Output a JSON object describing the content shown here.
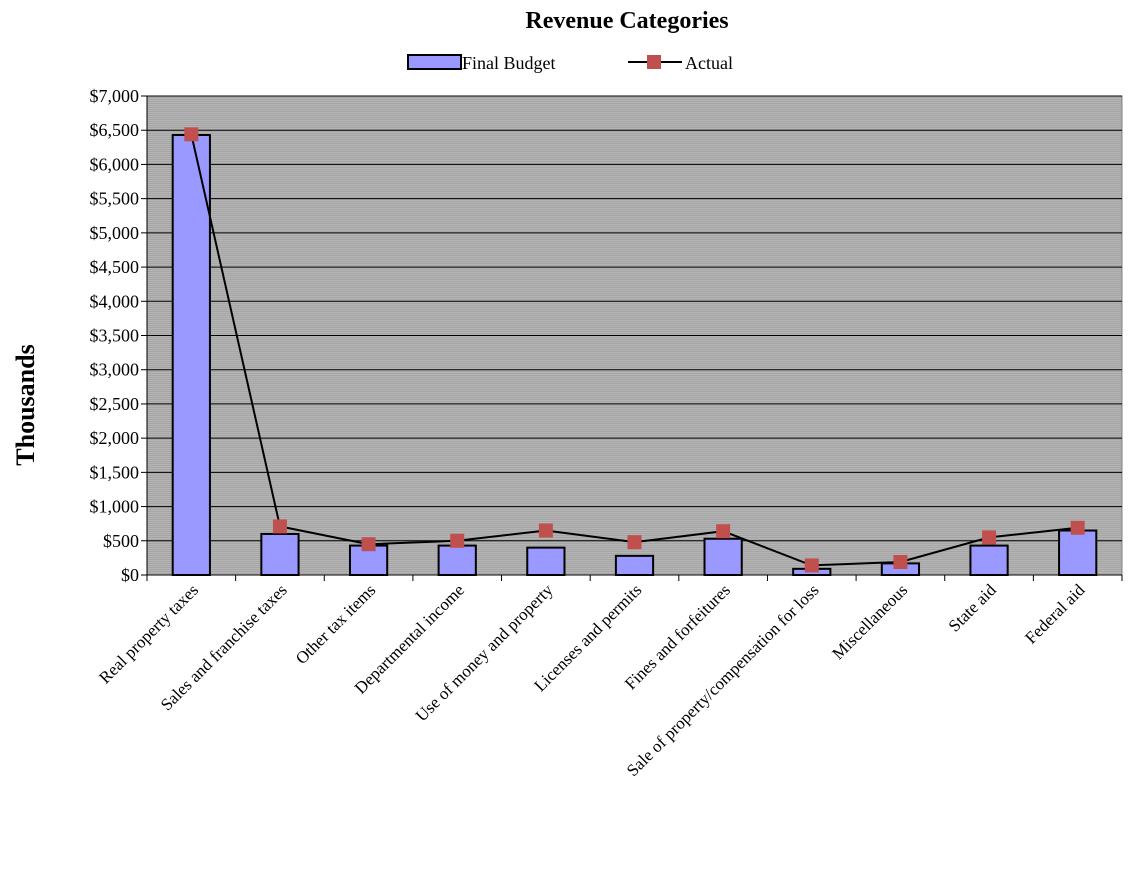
{
  "chart_data": {
    "type": "bar",
    "title": "Revenue Categories",
    "ylabel": "Thousands",
    "xlabel": "",
    "ylim": [
      0,
      7000
    ],
    "ytick_step": 500,
    "ytick_labels": [
      "$0",
      "$500",
      "$1,000",
      "$1,500",
      "$2,000",
      "$2,500",
      "$3,000",
      "$3,500",
      "$4,000",
      "$4,500",
      "$5,000",
      "$5,500",
      "$6,000",
      "$6,500",
      "$7,000"
    ],
    "categories": [
      "Real property taxes",
      "Sales and franchise taxes",
      "Other tax items",
      "Departmental income",
      "Use of money and property",
      "Licenses and permits",
      "Fines and forfeitures",
      "Sale of property/compensation for loss",
      "Miscellaneous",
      "State aid",
      "Federal aid"
    ],
    "series": [
      {
        "name": "Final Budget",
        "type": "bar",
        "color": "#9999ff",
        "values": [
          6430,
          600,
          430,
          430,
          400,
          280,
          530,
          90,
          170,
          430,
          650
        ]
      },
      {
        "name": "Actual",
        "type": "line",
        "color": "#000000",
        "marker_color": "#c0504d",
        "values": [
          6440,
          710,
          450,
          500,
          650,
          480,
          640,
          140,
          190,
          550,
          690
        ]
      }
    ],
    "legend": {
      "position": "top"
    },
    "grid": true,
    "plot_background": "#a6a6a6"
  }
}
